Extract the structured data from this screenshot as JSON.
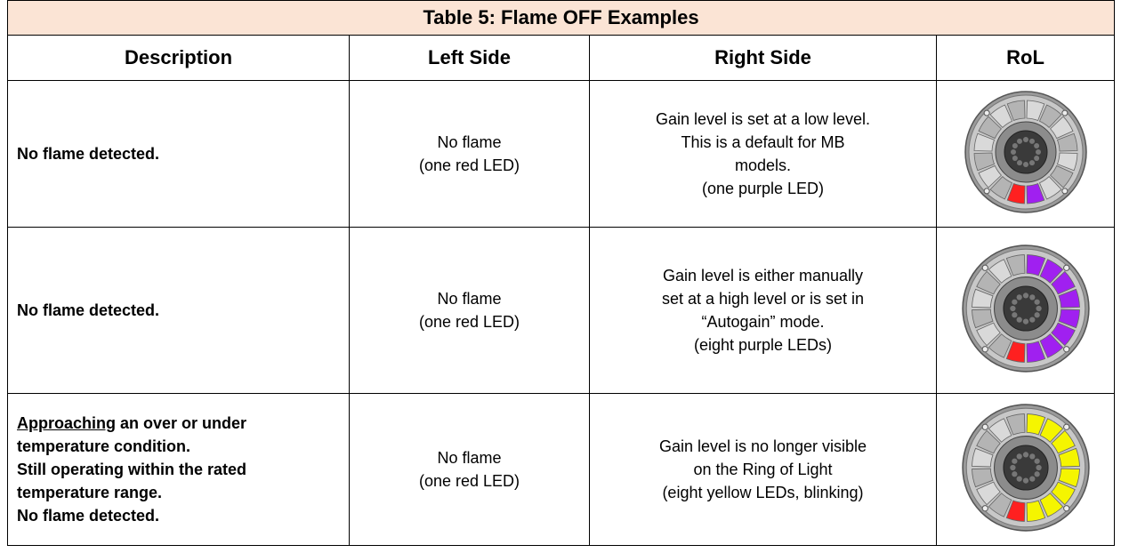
{
  "table": {
    "title": "Table 5: Flame OFF Examples",
    "headers": [
      "Description",
      "Left Side",
      "Right Side",
      "RoL"
    ],
    "rows": [
      {
        "description": [
          "No flame detected."
        ],
        "left": [
          "No flame",
          "(one red LED)"
        ],
        "right": [
          "Gain level is set at a low level.",
          "This is a default for MB",
          "models.",
          "(one purple LED)"
        ]
      },
      {
        "description": [
          "No flame detected."
        ],
        "left": [
          "No flame",
          "(one red LED)"
        ],
        "right": [
          "Gain level is either manually",
          "set at a high level or is set in",
          "“Autogain” mode.",
          "(eight purple LEDs)"
        ]
      },
      {
        "description": [
          "Approaching",
          " an over or under",
          "temperature condition.",
          "Still operating within the rated",
          "temperature range.",
          "No flame detected."
        ],
        "left": [
          "No flame",
          "(one red LED)"
        ],
        "right": [
          "Gain level is no longer visible",
          "on the Ring of Light",
          "(eight yellow LEDs, blinking)"
        ]
      }
    ]
  }
}
